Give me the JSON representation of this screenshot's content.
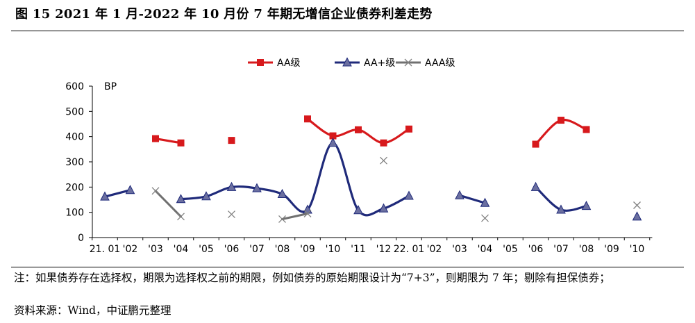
{
  "figure": {
    "title": "图 15    2021 年 1 月-2022 年 10 月份 7 年期无增信企业债券利差走势",
    "note": "注：如果债券存在选择权，期限为选择权之前的期限，例如债券的原始期限设计为“7+3”，则期限为 7 年；剔除有担保债券；",
    "source": "资料来源：Wind，中证鹏元整理"
  },
  "chart_data": {
    "type": "line",
    "unit_label": "BP",
    "categories": [
      "21. 01",
      "'02",
      "'03",
      "'04",
      "'05",
      "'06",
      "'07",
      "'08",
      "'09",
      "'10",
      "'11",
      "'12",
      "22. 01",
      "'02",
      "'03",
      "'04",
      "'05",
      "'06",
      "'07",
      "'08",
      "'09",
      "'10"
    ],
    "ylim": [
      0,
      600
    ],
    "yticks": [
      0,
      100,
      200,
      300,
      400,
      500,
      600
    ],
    "legend_position": "top-center",
    "series": [
      {
        "name": "AA级",
        "color": "#d7191c",
        "marker": "square",
        "values": [
          null,
          null,
          392,
          375,
          null,
          385,
          null,
          null,
          470,
          403,
          427,
          375,
          430,
          null,
          null,
          null,
          null,
          370,
          465,
          428,
          null,
          null
        ]
      },
      {
        "name": "AA+级",
        "color": "#1f2a7a",
        "marker": "triangle",
        "values": [
          162,
          188,
          null,
          152,
          163,
          200,
          195,
          172,
          110,
          375,
          108,
          115,
          165,
          null,
          167,
          137,
          null,
          200,
          110,
          125,
          null,
          83
        ]
      },
      {
        "name": "AAA级",
        "color": "#707070",
        "marker": "x",
        "values": [
          null,
          null,
          185,
          83,
          null,
          92,
          null,
          73,
          95,
          null,
          null,
          305,
          null,
          null,
          null,
          77,
          null,
          null,
          null,
          null,
          null,
          128
        ]
      }
    ]
  }
}
